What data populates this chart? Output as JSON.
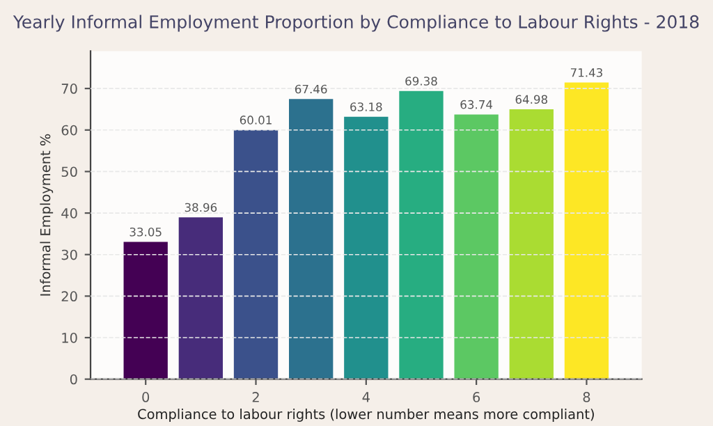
{
  "chart_data": {
    "type": "bar",
    "title": "Yearly Informal Employment Proportion by Compliance to Labour Rights - 2018",
    "xlabel": "Compliance to labour rights (lower number means more compliant)",
    "ylabel": "Informal Employment %",
    "x": [
      0,
      1,
      2,
      3,
      4,
      5,
      6,
      7,
      8
    ],
    "values": [
      33.05,
      38.96,
      60.01,
      67.46,
      63.18,
      69.38,
      63.74,
      64.98,
      71.43
    ],
    "colors": [
      "#440154",
      "#472c7a",
      "#3b518b",
      "#2c718e",
      "#21908d",
      "#27ad81",
      "#5cc863",
      "#aadc32",
      "#fde725"
    ],
    "xlim": [
      -1,
      9
    ],
    "xticks": [
      0,
      2,
      4,
      6,
      8
    ],
    "ylim": [
      0,
      79
    ],
    "yticks": [
      0,
      10,
      20,
      30,
      40,
      50,
      60,
      70
    ],
    "data_labels": true,
    "grid": "y"
  }
}
